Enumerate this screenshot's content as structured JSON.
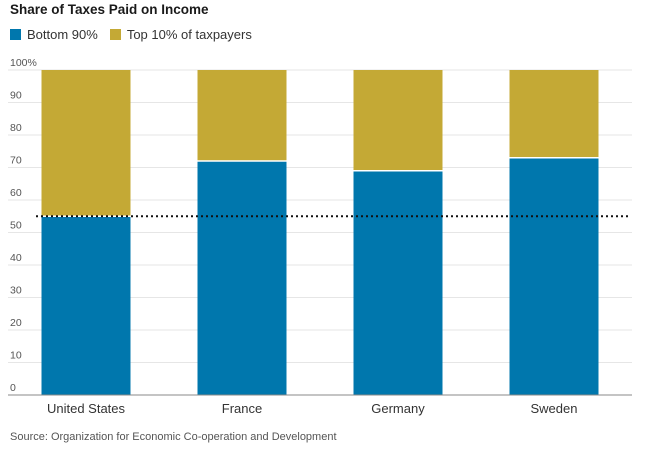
{
  "title": "Share of Taxes Paid on Income",
  "legend": {
    "bottom_label": "Bottom 90%",
    "top_label": "Top 10% of taxpayers"
  },
  "colors": {
    "bottom": "#0077ad",
    "top": "#c4a935",
    "grid": "#e6e6e6",
    "axis": "#888888",
    "reference_line": "#111111"
  },
  "source": "Source: Organization for Economic Co-operation and Development",
  "chart_data": {
    "type": "bar",
    "stacked": true,
    "title": "Share of Taxes Paid on Income",
    "categories": [
      "United States",
      "France",
      "Germany",
      "Sweden"
    ],
    "series": [
      {
        "name": "Bottom 90%",
        "values": [
          55,
          72,
          69,
          73
        ]
      },
      {
        "name": "Top 10% of taxpayers",
        "values": [
          45,
          28,
          31,
          27
        ]
      }
    ],
    "ylim": [
      0,
      100
    ],
    "yticks": [
      "0",
      "10",
      "20",
      "30",
      "40",
      "50",
      "60",
      "70",
      "80",
      "90",
      "100%"
    ],
    "reference_line": {
      "y": 55,
      "style": "dotted"
    },
    "grid": true,
    "legend_position": "top-left",
    "xlabel": "",
    "ylabel": ""
  }
}
